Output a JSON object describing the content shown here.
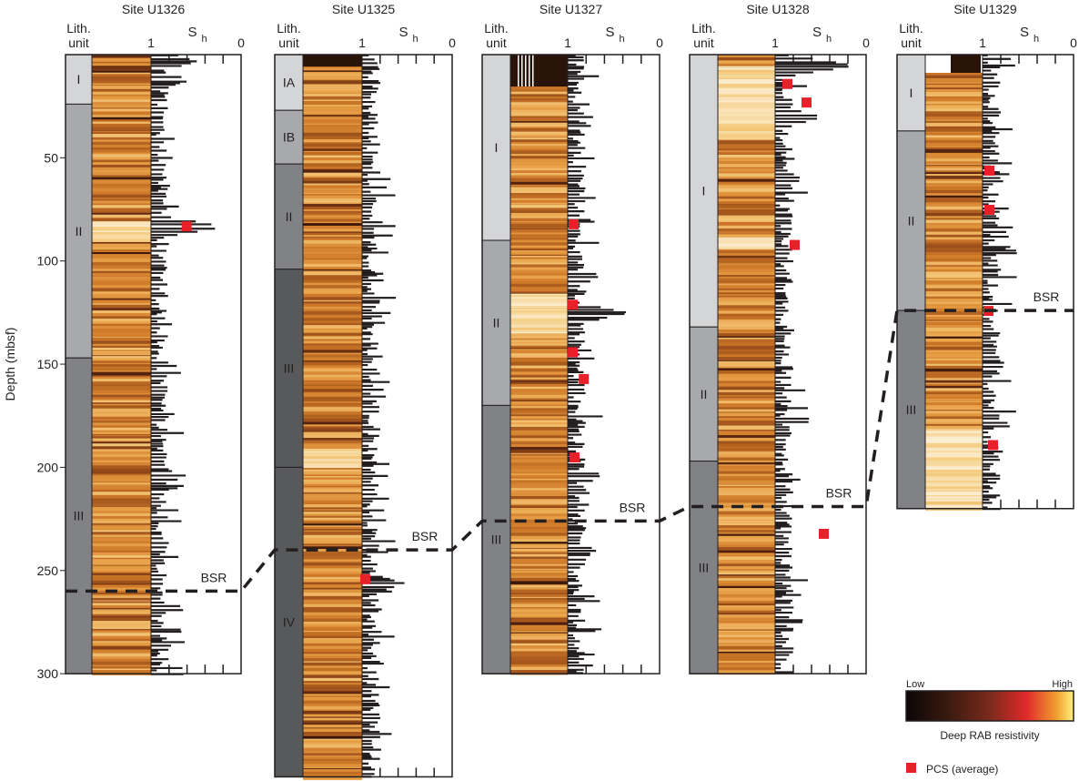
{
  "chart_data": {
    "type": "well-log",
    "y_axis": {
      "label": "Depth (mbsf)",
      "ticks": [
        50,
        100,
        150,
        200,
        250,
        300
      ],
      "range": [
        0,
        300
      ],
      "reversed": true
    },
    "sh_axis": {
      "label_main": "S",
      "label_sub": "h",
      "left_label": "1",
      "right_label": "0",
      "range": [
        1,
        0
      ],
      "tick_step": 0.2
    },
    "lith_header": {
      "line1": "Lith.",
      "line2": "unit"
    },
    "bsr_label": "BSR",
    "sites": [
      {
        "name": "Site U1326",
        "max_depth": 300,
        "bsr_depth": 260,
        "lith_units": [
          {
            "label": "I",
            "top": 0,
            "base": 24
          },
          {
            "label": "II",
            "top": 24,
            "base": 147
          },
          {
            "label": "III",
            "top": 147,
            "base": 300
          }
        ],
        "pcs": [
          {
            "depth": 83,
            "sh": 0.61
          }
        ],
        "bright_zones": [
          [
            80,
            90
          ]
        ],
        "sh_peaks": [
          {
            "depth": 3,
            "sh": 0.5
          },
          {
            "depth": 12,
            "sh": 0.6
          },
          {
            "depth": 83,
            "sh": 0.2
          },
          {
            "depth": 204,
            "sh": 0.62
          }
        ]
      },
      {
        "name": "Site U1325",
        "max_depth": 350,
        "bsr_depth": 240,
        "lith_units": [
          {
            "label": "IA",
            "top": 0,
            "base": 27
          },
          {
            "label": "IB",
            "top": 27,
            "base": 53
          },
          {
            "label": "II",
            "top": 53,
            "base": 104
          },
          {
            "label": "III",
            "top": 104,
            "base": 200
          },
          {
            "label": "IV",
            "top": 200,
            "base": 350
          }
        ],
        "pcs": [
          {
            "depth": 254,
            "sh": 0.97
          }
        ],
        "bright_zones": [
          [
            190,
            200
          ]
        ],
        "sh_peaks": [
          {
            "depth": 256,
            "sh": 0.55
          }
        ]
      },
      {
        "name": "Site U1327",
        "max_depth": 300,
        "bsr_depth": 226,
        "lith_units": [
          {
            "label": "I",
            "top": 0,
            "base": 90
          },
          {
            "label": "II",
            "top": 90,
            "base": 170
          },
          {
            "label": "III",
            "top": 170,
            "base": 300
          }
        ],
        "pcs": [
          {
            "depth": 82,
            "sh": 0.94
          },
          {
            "depth": 121,
            "sh": 0.95
          },
          {
            "depth": 144,
            "sh": 0.95
          },
          {
            "depth": 157,
            "sh": 0.83
          },
          {
            "depth": 195,
            "sh": 0.93
          }
        ],
        "bright_zones": [
          [
            115,
            135
          ]
        ],
        "sh_peaks": [
          {
            "depth": 125,
            "sh": 0.35
          },
          {
            "depth": 240,
            "sh": 0.7
          }
        ]
      },
      {
        "name": "Site U1328",
        "max_depth": 300,
        "bsr_depth": 219,
        "lith_units": [
          {
            "label": "I",
            "top": 0,
            "base": 132
          },
          {
            "label": "II",
            "top": 132,
            "base": 197
          },
          {
            "label": "III",
            "top": 197,
            "base": 300
          }
        ],
        "pcs": [
          {
            "depth": 14,
            "sh": 0.87
          },
          {
            "depth": 23,
            "sh": 0.66
          },
          {
            "depth": 92,
            "sh": 0.79
          },
          {
            "depth": 232,
            "sh": 0.47
          }
        ],
        "bright_zones": [
          [
            5,
            40
          ],
          [
            88,
            94
          ]
        ],
        "sh_peaks": [
          {
            "depth": 5,
            "sh": 0.15
          },
          {
            "depth": 30,
            "sh": 0.5
          },
          {
            "depth": 60,
            "sh": 0.7
          }
        ]
      },
      {
        "name": "Site U1329",
        "max_depth": 220,
        "bsr_depth": 124,
        "lith_units": [
          {
            "label": "I",
            "top": 0,
            "base": 37
          },
          {
            "label": "II",
            "top": 37,
            "base": 124
          },
          {
            "label": "III",
            "top": 124,
            "base": 220
          }
        ],
        "pcs": [
          {
            "depth": 56,
            "sh": 0.93
          },
          {
            "depth": 75,
            "sh": 0.93
          },
          {
            "depth": 124,
            "sh": 0.94
          },
          {
            "depth": 189,
            "sh": 0.89
          }
        ],
        "bright_zones": [
          [
            180,
            220
          ]
        ],
        "sh_peaks": [
          {
            "depth": 150,
            "sh": 0.75
          }
        ]
      }
    ],
    "legend": {
      "colorbar_low": "Low",
      "colorbar_high": "High",
      "colorbar_title": "Deep RAB resistivity",
      "pcs_label": "PCS (average)",
      "pcs_color": "#e8202a",
      "colormap": [
        "#0a0605",
        "#3a1a10",
        "#7a2a1c",
        "#e12a2a",
        "#f0a030",
        "#fff27a"
      ]
    }
  }
}
